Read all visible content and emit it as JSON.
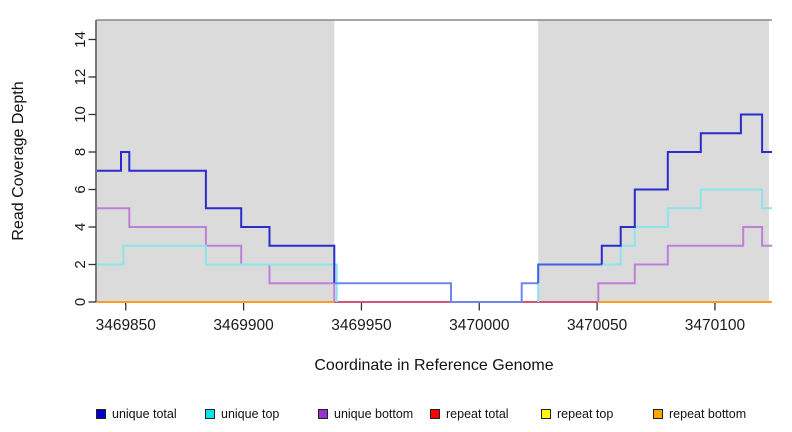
{
  "chart_data": {
    "type": "line",
    "subtype": "step-coverage-plot",
    "title": "",
    "xlabel": "Coordinate in Reference Genome",
    "ylabel": "Read Coverage Depth",
    "xlim": [
      3469837.8,
      3470124.2
    ],
    "ylim": [
      0,
      15.04
    ],
    "grid": false,
    "x_ticks": [
      {
        "value": 3469850,
        "label": "3469850"
      },
      {
        "value": 3469900,
        "label": "3469900"
      },
      {
        "value": 3469950,
        "label": "3469950"
      },
      {
        "value": 3470000,
        "label": "3470000"
      },
      {
        "value": 3470050,
        "label": "3470050"
      },
      {
        "value": 3470100,
        "label": "3470100"
      }
    ],
    "y_ticks": [
      {
        "value": 0,
        "label": "0"
      },
      {
        "value": 2,
        "label": "2"
      },
      {
        "value": 4,
        "label": "4"
      },
      {
        "value": 6,
        "label": "6"
      },
      {
        "value": 8,
        "label": "8"
      },
      {
        "value": 10,
        "label": "10"
      },
      {
        "value": 12,
        "label": "12"
      },
      {
        "value": 14,
        "label": "14"
      }
    ],
    "legend_position": "bottom",
    "legend": [
      {
        "label": "unique total",
        "color": "#0000CD"
      },
      {
        "label": "unique top",
        "color": "#00E5EE"
      },
      {
        "label": "unique bottom",
        "color": "#9932CC"
      },
      {
        "label": "repeat total",
        "color": "#FF0000"
      },
      {
        "label": "repeat top",
        "color": "#FFFF00"
      },
      {
        "label": "repeat bottom",
        "color": "#FFA500"
      }
    ],
    "series": [
      {
        "name": "unique total",
        "color": "#0000CD",
        "steps": [
          [
            3469838,
            7
          ],
          [
            3469848,
            8
          ],
          [
            3469852,
            7
          ],
          [
            3469884,
            5
          ],
          [
            3469899,
            4
          ],
          [
            3469911,
            3
          ],
          [
            3469939,
            1
          ],
          [
            3469988,
            0
          ],
          [
            3470018,
            1
          ],
          [
            3470025,
            2
          ],
          [
            3470052,
            3
          ],
          [
            3470060,
            4
          ],
          [
            3470066,
            6
          ],
          [
            3470080,
            8
          ],
          [
            3470094,
            9
          ],
          [
            3470111,
            10
          ],
          [
            3470120,
            8
          ]
        ]
      },
      {
        "name": "unique top",
        "color": "#00E5EE",
        "steps": [
          [
            3469838,
            2
          ],
          [
            3469849,
            3
          ],
          [
            3469884,
            2
          ],
          [
            3469940,
            0
          ],
          [
            3470025,
            2
          ],
          [
            3470060,
            3
          ],
          [
            3470066,
            4
          ],
          [
            3470080,
            5
          ],
          [
            3470094,
            6
          ],
          [
            3470120,
            5
          ]
        ]
      },
      {
        "name": "unique bottom",
        "color": "#9932CC",
        "steps": [
          [
            3469838,
            5
          ],
          [
            3469852,
            4
          ],
          [
            3469884,
            3
          ],
          [
            3469899,
            2
          ],
          [
            3469911,
            1
          ],
          [
            3469939,
            0
          ],
          [
            3470051,
            1
          ],
          [
            3470066,
            2
          ],
          [
            3470080,
            3
          ],
          [
            3470112,
            4
          ],
          [
            3470120,
            3
          ]
        ]
      },
      {
        "name": "repeat total",
        "color": "#FF0000",
        "steps": [
          [
            3469838,
            0
          ]
        ]
      },
      {
        "name": "repeat top",
        "color": "#FFFF00",
        "steps": [
          [
            3469838,
            0
          ]
        ]
      },
      {
        "name": "repeat bottom",
        "color": "#FFA500",
        "steps": [
          [
            3469838,
            0
          ]
        ]
      }
    ],
    "render": {
      "region_fill": "#DBDBDB",
      "box_top_color": "#888888",
      "axis_color": "#333333",
      "tick_text_color": "#1a1a1a",
      "shaded_regions": [
        {
          "from": 3469837.8,
          "to": 3469938.5
        },
        {
          "from": 3470025.0,
          "to": 3470122.9
        }
      ],
      "zero_segments": [
        {
          "color": "#FF9D1E",
          "from": 3469837.8,
          "to": 3469938.5
        },
        {
          "color": "#CE5573",
          "from": 3469938.5,
          "to": 3470050.5
        },
        {
          "color": "#FF9D1E",
          "from": 3470050.5,
          "to": 3470124.2
        }
      ],
      "paths": [
        {
          "name": "unique-bottom-left",
          "color": "#BD80DA",
          "points": [
            [
              3469837.8,
              5
            ],
            [
              3469851.5,
              5
            ],
            [
              3469851.5,
              4
            ],
            [
              3469884,
              4
            ],
            [
              3469884,
              3
            ],
            [
              3469899,
              3
            ],
            [
              3469899,
              2
            ],
            [
              3469911,
              2
            ],
            [
              3469911,
              1
            ],
            [
              3469938.5,
              1
            ],
            [
              3469938.5,
              0
            ]
          ]
        },
        {
          "name": "unique-bottom-right",
          "color": "#BD80DA",
          "points": [
            [
              3470050.5,
              0
            ],
            [
              3470050.5,
              1
            ],
            [
              3470066,
              1
            ],
            [
              3470066,
              2
            ],
            [
              3470080,
              2
            ],
            [
              3470080,
              3
            ],
            [
              3470112,
              3
            ],
            [
              3470112,
              4
            ],
            [
              3470120,
              4
            ],
            [
              3470120,
              3
            ],
            [
              3470124.2,
              3
            ]
          ]
        },
        {
          "name": "unique-top-left",
          "color": "#8CE4EC",
          "points": [
            [
              3469837.8,
              2
            ],
            [
              3469849,
              2
            ],
            [
              3469849,
              3
            ],
            [
              3469884,
              3
            ],
            [
              3469884,
              2
            ],
            [
              3469939.5,
              2
            ],
            [
              3469939.5,
              0
            ]
          ]
        },
        {
          "name": "unique-top-right",
          "color": "#8CE4EC",
          "points": [
            [
              3470025,
              0
            ],
            [
              3470025,
              2
            ],
            [
              3470060,
              2
            ],
            [
              3470060,
              3
            ],
            [
              3470066,
              3
            ],
            [
              3470066,
              4
            ],
            [
              3470080,
              4
            ],
            [
              3470080,
              5
            ],
            [
              3470094,
              5
            ],
            [
              3470094,
              6
            ],
            [
              3470120,
              6
            ],
            [
              3470120,
              5
            ],
            [
              3470124.2,
              5
            ]
          ]
        },
        {
          "name": "unique-total-left",
          "color": "#2B2BCE",
          "points": [
            [
              3469837.8,
              7
            ],
            [
              3469848,
              7
            ],
            [
              3469848,
              8
            ],
            [
              3469851.5,
              8
            ],
            [
              3469851.5,
              7
            ],
            [
              3469884,
              7
            ],
            [
              3469884,
              5
            ],
            [
              3469899,
              5
            ],
            [
              3469899,
              4
            ],
            [
              3469911,
              4
            ],
            [
              3469911,
              3
            ],
            [
              3469938.5,
              3
            ],
            [
              3469938.5,
              1
            ]
          ]
        },
        {
          "name": "unique-total-gap",
          "color": "#6E86EF",
          "points": [
            [
              3469938.5,
              1
            ],
            [
              3469988,
              1
            ],
            [
              3469988,
              0
            ],
            [
              3470018,
              0
            ],
            [
              3470018,
              1
            ],
            [
              3470025,
              1
            ]
          ]
        },
        {
          "name": "unique-total-rise",
          "color": "#3E63E8",
          "points": [
            [
              3470025,
              1
            ],
            [
              3470025,
              2
            ],
            [
              3470052,
              2
            ]
          ]
        },
        {
          "name": "unique-total-right",
          "color": "#2B2BCE",
          "points": [
            [
              3470052,
              2
            ],
            [
              3470052,
              3
            ],
            [
              3470060,
              3
            ],
            [
              3470060,
              4
            ],
            [
              3470066,
              4
            ],
            [
              3470066,
              6
            ],
            [
              3470080,
              6
            ],
            [
              3470080,
              8
            ],
            [
              3470094,
              8
            ],
            [
              3470094,
              9
            ],
            [
              3470111,
              9
            ],
            [
              3470111,
              10
            ],
            [
              3470120,
              10
            ],
            [
              3470120,
              8
            ],
            [
              3470124.2,
              8
            ]
          ]
        }
      ]
    }
  }
}
